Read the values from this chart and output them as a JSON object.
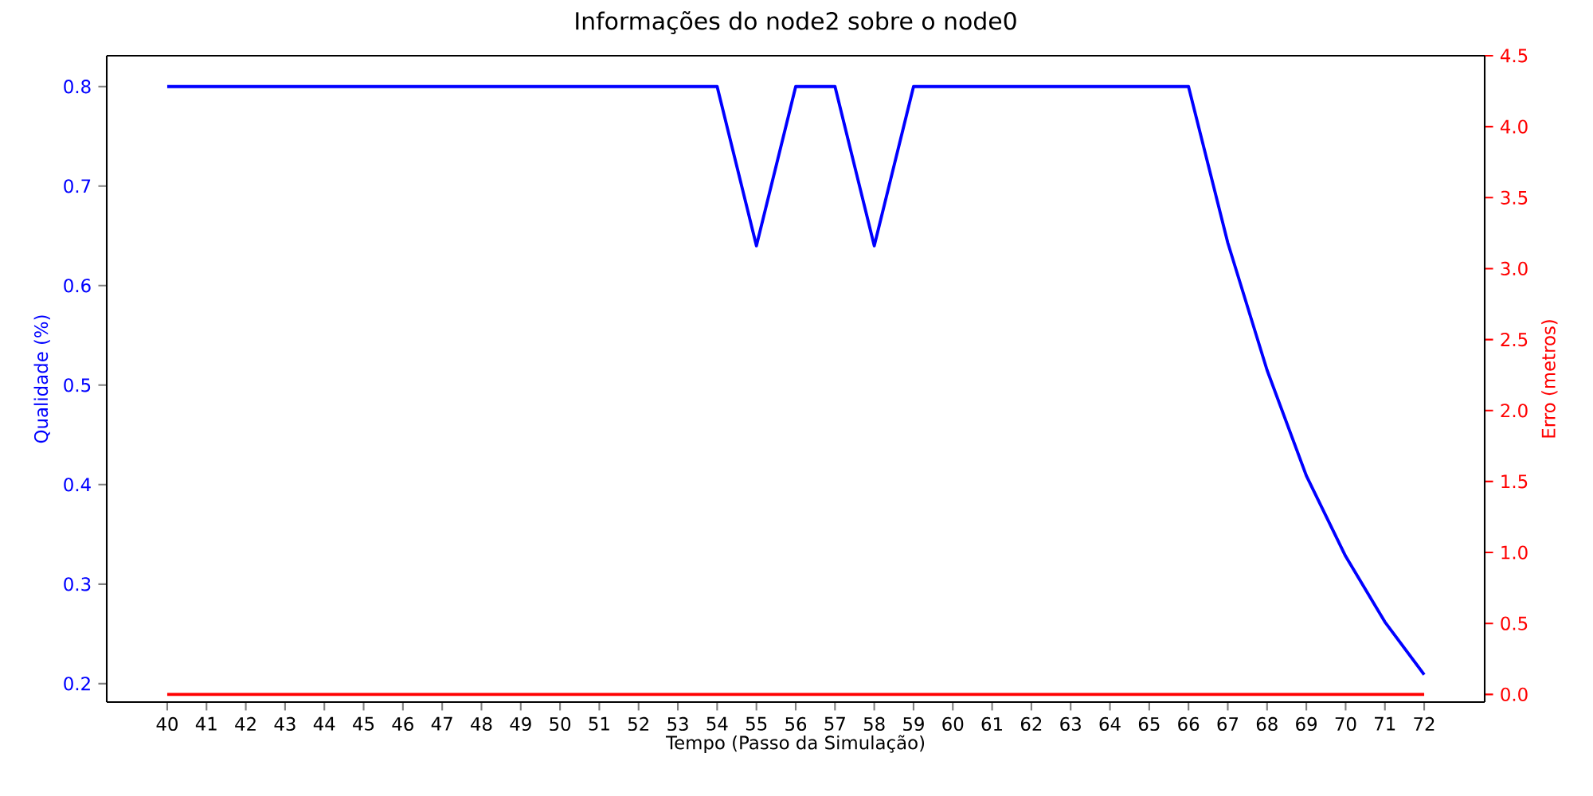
{
  "chart_data": {
    "type": "line",
    "title": "Informações do node2 sobre o node0",
    "xlabel": "Tempo (Passo da Simulação)",
    "ylabel": "Qualidade (%)",
    "y2label": "Erro (metros)",
    "x": [
      40,
      41,
      42,
      43,
      44,
      45,
      46,
      47,
      48,
      49,
      50,
      51,
      52,
      53,
      54,
      55,
      56,
      57,
      58,
      59,
      60,
      61,
      62,
      63,
      64,
      65,
      66,
      67,
      68,
      69,
      70,
      71,
      72
    ],
    "series": [
      {
        "name": null,
        "color": "#0000ff",
        "axis": "y",
        "values": [
          0.8,
          0.8,
          0.8,
          0.8,
          0.8,
          0.8,
          0.8,
          0.8,
          0.8,
          0.8,
          0.8,
          0.8,
          0.8,
          0.8,
          0.8,
          0.64,
          0.8,
          0.8,
          0.64,
          0.8,
          0.8,
          0.8,
          0.8,
          0.8,
          0.8,
          0.8,
          0.8,
          0.643,
          0.515,
          0.409,
          0.328,
          0.262,
          0.209
        ]
      },
      {
        "name": null,
        "color": "#ff0000",
        "axis": "y2",
        "values": [
          0,
          0,
          0,
          0,
          0,
          0,
          0,
          0,
          0,
          0,
          0,
          0,
          0,
          0,
          0,
          0,
          0,
          0,
          0,
          0,
          0,
          0,
          0,
          0,
          0,
          0,
          0,
          0,
          0,
          0,
          0,
          0,
          0
        ]
      }
    ],
    "xlim": [
      38.46,
      73.54
    ],
    "xticks": [
      40,
      41,
      42,
      43,
      44,
      45,
      46,
      47,
      48,
      49,
      50,
      51,
      52,
      53,
      54,
      55,
      56,
      57,
      58,
      59,
      60,
      61,
      62,
      63,
      64,
      65,
      66,
      67,
      68,
      69,
      70,
      71,
      72
    ],
    "ylim": [
      0.1815,
      0.831
    ],
    "yticks": [
      0.2,
      0.3,
      0.4,
      0.5,
      0.6,
      0.7,
      0.8
    ],
    "y2lim": [
      -0.054,
      4.5
    ],
    "y2ticks": [
      {
        "value": 0,
        "label": "0.0"
      },
      0.5,
      {
        "value": 1,
        "label": "1.0"
      },
      1.5,
      {
        "value": 2,
        "label": "2.0"
      },
      2.5,
      {
        "value": 3,
        "label": "3.0"
      },
      3.5,
      {
        "value": 4,
        "label": "4.0"
      },
      4.5
    ],
    "line_style": "solid",
    "marker": "none"
  }
}
